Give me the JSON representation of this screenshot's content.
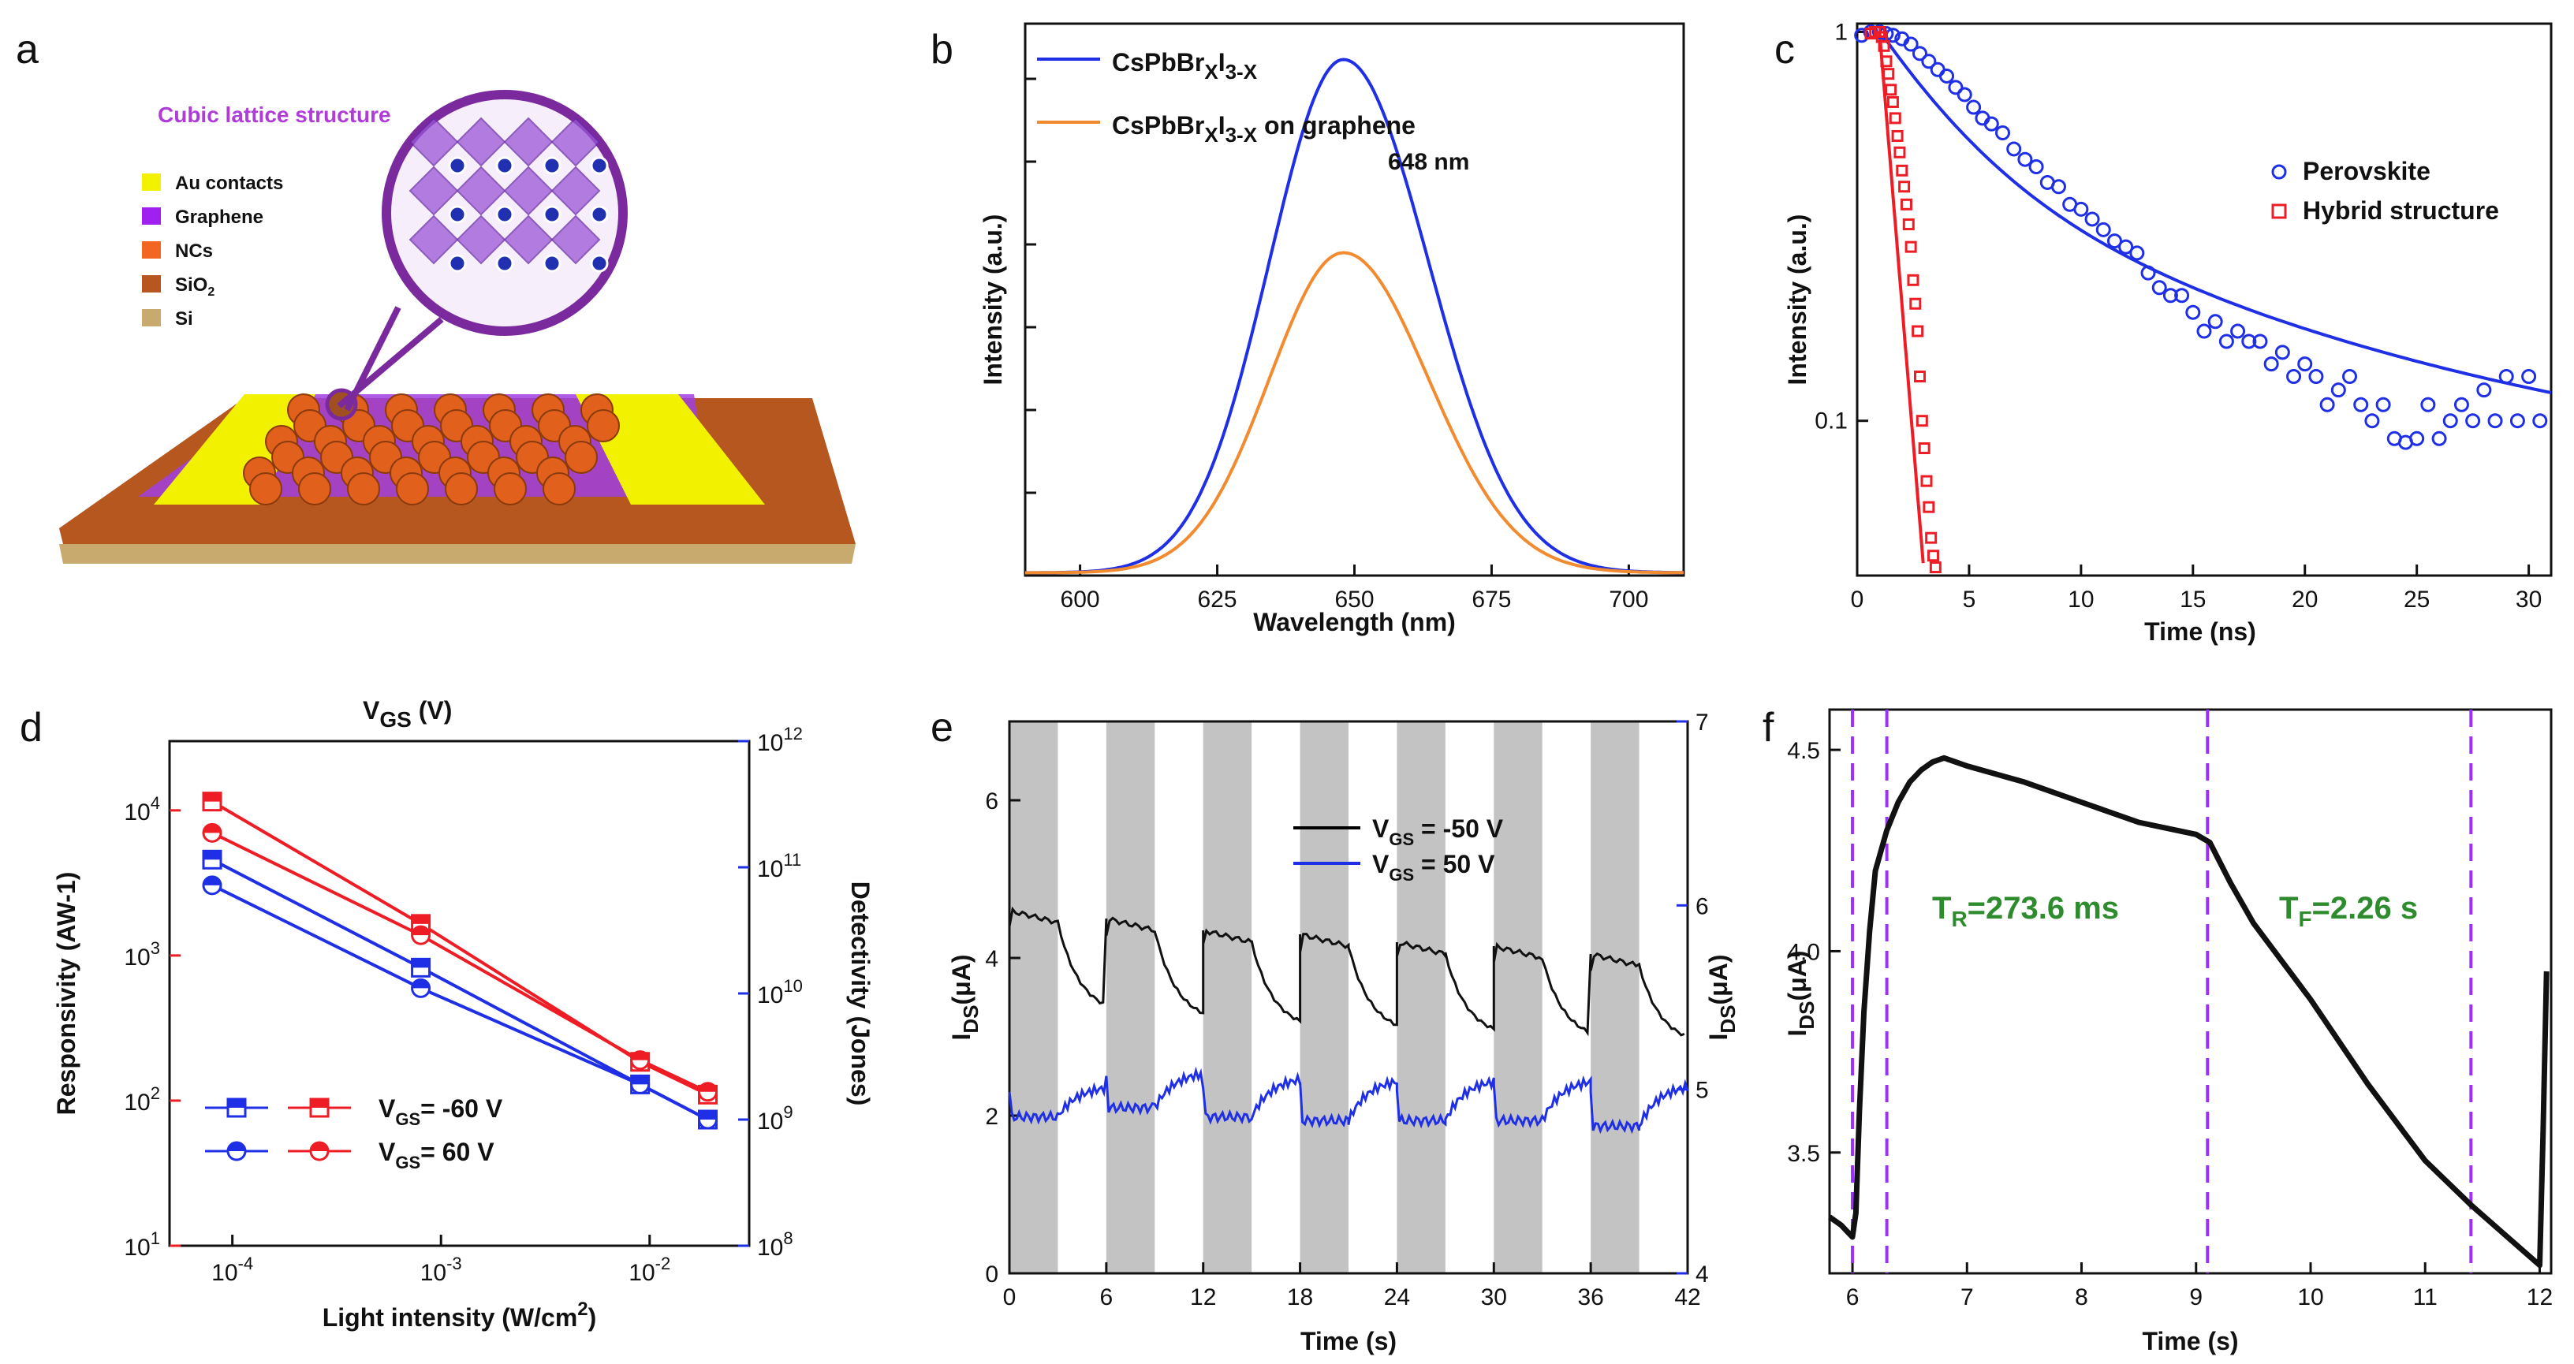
{
  "colors": {
    "blue": "#1f2fe6",
    "red": "#ee1c24",
    "orange": "#f28b30",
    "purple": "#9b30ff",
    "green": "#2e8b2e",
    "gray": "#c3c3c3",
    "magenta": "#b03cd8"
  },
  "panels": {
    "a": {
      "letter": "a",
      "lattice_label": "Cubic lattice structure",
      "legend": [
        {
          "label": "Au contacts",
          "color": "#f2f200"
        },
        {
          "label": "Graphene",
          "color": "#a020f0"
        },
        {
          "label": "NCs",
          "color": "#f26522"
        },
        {
          "label": "SiO",
          "sub": "2",
          "color": "#b5571e"
        },
        {
          "label": "Si",
          "color": "#c8aa6e"
        }
      ]
    },
    "b": {
      "letter": "b",
      "peak_label": "648 nm",
      "legend": [
        {
          "formula": "CsPbBr",
          "x1": "X",
          "mid": "I",
          "x2": "3-X",
          "suffix": ""
        },
        {
          "formula": "CsPbBr",
          "x1": "X",
          "mid": "I",
          "x2": "3-X",
          "suffix": " on graphene"
        }
      ]
    },
    "c": {
      "letter": "c"
    },
    "d": {
      "letter": "d",
      "title_main": "V",
      "title_sub": "GS",
      "title_unit": " (V)"
    },
    "e": {
      "letter": "e"
    },
    "f": {
      "letter": "f",
      "tr_label": "=273.6 ms",
      "tr_main": "T",
      "tr_sub": "R",
      "tf_label": "=2.26 s",
      "tf_main": "T",
      "tf_sub": "F"
    }
  },
  "chart_data": [
    {
      "id": "b",
      "type": "line",
      "title": "",
      "xlabel": "Wavelength (nm)",
      "ylabel": "Intensity (a.u.)",
      "xlim": [
        590,
        710
      ],
      "ylim": [
        0,
        1.0
      ],
      "xticks": [
        600,
        625,
        650,
        675,
        700
      ],
      "series": [
        {
          "name": "CsPbBrXI3-X",
          "color": "blue",
          "peak": 648,
          "amp": 0.93,
          "sigma_left": 13.5,
          "sigma_right": 15.5,
          "base": 0.005
        },
        {
          "name": "CsPbBrXI3-X on graphene",
          "color": "orange",
          "peak": 648,
          "amp": 0.58,
          "sigma_left": 13.5,
          "sigma_right": 15.5,
          "base": 0.005
        }
      ]
    },
    {
      "id": "c",
      "type": "scatter",
      "title": "",
      "xlabel": "Time (ns)",
      "ylabel": "Intensity (a.u.)",
      "xlim": [
        0,
        31
      ],
      "ylim": [
        0.04,
        1.05
      ],
      "yscale": "log",
      "xticks": [
        0,
        5,
        10,
        15,
        20,
        25,
        30
      ],
      "yticks": [
        {
          "v": 1,
          "label": "1"
        },
        {
          "v": 0.1,
          "label": "0.1"
        }
      ],
      "series": [
        {
          "name": "Perovskite",
          "color": "blue",
          "marker": "circle",
          "fit": {
            "t0": 1.2,
            "a1": 0.55,
            "tau1": 3.5,
            "a2": 0.35,
            "tau2": 15,
            "y0": 0.07
          },
          "points": [
            [
              0.2,
              0.98
            ],
            [
              0.6,
              1.0
            ],
            [
              1.0,
              1.0
            ],
            [
              1.3,
              0.99
            ],
            [
              1.6,
              0.98
            ],
            [
              2.0,
              0.96
            ],
            [
              2.4,
              0.93
            ],
            [
              2.8,
              0.88
            ],
            [
              3.2,
              0.84
            ],
            [
              3.6,
              0.8
            ],
            [
              4.0,
              0.77
            ],
            [
              4.4,
              0.72
            ],
            [
              4.8,
              0.69
            ],
            [
              5.2,
              0.64
            ],
            [
              5.6,
              0.6
            ],
            [
              6.0,
              0.58
            ],
            [
              6.5,
              0.55
            ],
            [
              7.0,
              0.5
            ],
            [
              7.5,
              0.47
            ],
            [
              8.0,
              0.45
            ],
            [
              8.5,
              0.41
            ],
            [
              9.0,
              0.4
            ],
            [
              9.5,
              0.36
            ],
            [
              10.0,
              0.35
            ],
            [
              10.5,
              0.33
            ],
            [
              11.0,
              0.31
            ],
            [
              11.5,
              0.29
            ],
            [
              12.0,
              0.28
            ],
            [
              12.5,
              0.27
            ],
            [
              13.0,
              0.24
            ],
            [
              13.5,
              0.22
            ],
            [
              14.0,
              0.21
            ],
            [
              14.5,
              0.21
            ],
            [
              15.0,
              0.19
            ],
            [
              15.5,
              0.17
            ],
            [
              16.0,
              0.18
            ],
            [
              16.5,
              0.16
            ],
            [
              17.0,
              0.17
            ],
            [
              17.5,
              0.16
            ],
            [
              18.0,
              0.16
            ],
            [
              18.5,
              0.14
            ],
            [
              19.0,
              0.15
            ],
            [
              19.5,
              0.13
            ],
            [
              20.0,
              0.14
            ],
            [
              20.5,
              0.13
            ],
            [
              21.0,
              0.11
            ],
            [
              21.5,
              0.12
            ],
            [
              22.0,
              0.13
            ],
            [
              22.5,
              0.11
            ],
            [
              23.0,
              0.1
            ],
            [
              23.5,
              0.11
            ],
            [
              24.0,
              0.09
            ],
            [
              24.5,
              0.088
            ],
            [
              25.0,
              0.09
            ],
            [
              25.5,
              0.11
            ],
            [
              26.0,
              0.09
            ],
            [
              26.5,
              0.1
            ],
            [
              27.0,
              0.11
            ],
            [
              27.5,
              0.1
            ],
            [
              28.0,
              0.12
            ],
            [
              28.5,
              0.1
            ],
            [
              29.0,
              0.13
            ],
            [
              29.5,
              0.1
            ],
            [
              30.0,
              0.13
            ],
            [
              30.5,
              0.1
            ]
          ]
        },
        {
          "name": "Hybrid structure",
          "color": "red",
          "marker": "square",
          "fit": {
            "t0": 1.0,
            "a": 1.0,
            "tau": 0.62
          },
          "points": [
            [
              0.6,
              0.99
            ],
            [
              0.8,
              1.0
            ],
            [
              1.0,
              1.0
            ],
            [
              1.1,
              0.97
            ],
            [
              1.2,
              0.92
            ],
            [
              1.3,
              0.84
            ],
            [
              1.4,
              0.78
            ],
            [
              1.5,
              0.71
            ],
            [
              1.6,
              0.66
            ],
            [
              1.7,
              0.6
            ],
            [
              1.8,
              0.54
            ],
            [
              1.9,
              0.49
            ],
            [
              2.0,
              0.44
            ],
            [
              2.1,
              0.4
            ],
            [
              2.2,
              0.36
            ],
            [
              2.3,
              0.32
            ],
            [
              2.4,
              0.28
            ],
            [
              2.5,
              0.23
            ],
            [
              2.6,
              0.2
            ],
            [
              2.7,
              0.17
            ],
            [
              2.8,
              0.13
            ],
            [
              2.9,
              0.1
            ],
            [
              3.0,
              0.085
            ],
            [
              3.1,
              0.07
            ],
            [
              3.2,
              0.06
            ],
            [
              3.3,
              0.05
            ],
            [
              3.4,
              0.045
            ],
            [
              3.5,
              0.042
            ]
          ]
        }
      ]
    },
    {
      "id": "d",
      "type": "line",
      "title": "VGS (V)",
      "xlabel": "Light intensity (W/cm2)",
      "ylabel": "Responsivity (AW-1)",
      "ylabel2": "Detectivity (Jones)",
      "xscale": "log",
      "yscale": "log",
      "xlim": [
        5e-05,
        0.03
      ],
      "ylim": [
        10,
        30000
      ],
      "ylim2": [
        100000000,
        1000000000000
      ],
      "xticks": [
        {
          "v": 0.0001,
          "m": "10",
          "e": "-4"
        },
        {
          "v": 0.001,
          "m": "10",
          "e": "-3"
        },
        {
          "v": 0.01,
          "m": "10",
          "e": "-2"
        }
      ],
      "yticks": [
        {
          "v": 10,
          "e": "1"
        },
        {
          "v": 100,
          "e": "2"
        },
        {
          "v": 1000,
          "e": "3"
        },
        {
          "v": 10000,
          "e": "4"
        }
      ],
      "y2ticks": [
        {
          "v": 100000000,
          "e": "8"
        },
        {
          "v": 1000000000,
          "e": "9"
        },
        {
          "v": 10000000000,
          "e": "10"
        },
        {
          "v": 100000000000,
          "e": "11"
        },
        {
          "v": 1000000000000,
          "e": "12"
        }
      ],
      "x": [
        8e-05,
        0.0008,
        0.009,
        0.019
      ],
      "series": [
        {
          "name": "Responsivity VGS=-60 V",
          "axis": "left",
          "color": "red",
          "marker": "square",
          "values": [
            11500,
            1650,
            185,
            110
          ]
        },
        {
          "name": "Responsivity VGS=60 V",
          "axis": "left",
          "color": "red",
          "marker": "circle",
          "values": [
            7000,
            1380,
            190,
            115
          ]
        },
        {
          "name": "Detectivity VGS=-60 V",
          "axis": "right",
          "color": "blue",
          "marker": "square",
          "values": [
            115000000000,
            16000000000,
            1900000000,
            1000000000
          ]
        },
        {
          "name": "Detectivity VGS=60 V",
          "axis": "right",
          "color": "blue",
          "marker": "circle",
          "values": [
            72000000000,
            11000000000,
            1900000000,
            1000000000
          ]
        }
      ],
      "legend": [
        {
          "main": "V",
          "sub": "GS",
          "rest": "= -60 V",
          "marker": "square"
        },
        {
          "main": "V",
          "sub": "GS",
          "rest": "= 60 V",
          "marker": "circle"
        }
      ]
    },
    {
      "id": "e",
      "type": "line",
      "title": "",
      "xlabel": "Time (s)",
      "ylabel": "IDS(μA)",
      "ylabel2": "IDS(μA)",
      "xlim": [
        0,
        42
      ],
      "ylim": [
        0,
        7
      ],
      "ylim2": [
        4,
        7
      ],
      "xticks": [
        0,
        6,
        12,
        18,
        24,
        30,
        36,
        42
      ],
      "yticks": [
        0,
        2,
        4,
        6
      ],
      "y2ticks": [
        4,
        5,
        6,
        7
      ],
      "light_on": [
        [
          0,
          3
        ],
        [
          6,
          9
        ],
        [
          12,
          15
        ],
        [
          18,
          21
        ],
        [
          24,
          27
        ],
        [
          30,
          33
        ],
        [
          36,
          39
        ]
      ],
      "series": [
        {
          "name": "VGS = -50 V",
          "color": "black",
          "axis": "left",
          "on_peaks": [
            4.6,
            4.5,
            4.35,
            4.3,
            4.2,
            4.15,
            4.05
          ],
          "off_ends": [
            3.4,
            3.3,
            3.2,
            3.15,
            3.1,
            3.05,
            3.0
          ],
          "end": 2.9
        },
        {
          "name": "VGS = 50 V",
          "color": "blue",
          "axis": "right",
          "on_levels": [
            4.9,
            4.95,
            4.9,
            4.88,
            4.88,
            4.88,
            4.85
          ],
          "rise": [
            0.17,
            0.2,
            0.22,
            0.23,
            0.23,
            0.23,
            0.23
          ],
          "dark": 4.9,
          "end": 5.1
        }
      ],
      "legend": [
        {
          "main": "V",
          "sub": "GS",
          "rest": " = -50 V",
          "color": "black"
        },
        {
          "main": "V",
          "sub": "GS",
          "rest": " = 50 V",
          "color": "blue"
        }
      ]
    },
    {
      "id": "f",
      "type": "line",
      "title": "",
      "xlabel": "Time (s)",
      "ylabel": "IDS(μA)",
      "xlim": [
        5.8,
        12.1
      ],
      "ylim": [
        3.2,
        4.6
      ],
      "xticks": [
        6,
        7,
        8,
        9,
        10,
        11,
        12
      ],
      "yticks": [
        3.5,
        4.0,
        4.5
      ],
      "vlines": [
        6.0,
        6.3,
        9.1,
        11.4
      ],
      "series": [
        {
          "name": "IDS",
          "color": "black",
          "points": [
            [
              5.8,
              3.34
            ],
            [
              5.9,
              3.32
            ],
            [
              6.0,
              3.29
            ],
            [
              6.03,
              3.35
            ],
            [
              6.06,
              3.6
            ],
            [
              6.1,
              3.85
            ],
            [
              6.15,
              4.05
            ],
            [
              6.2,
              4.2
            ],
            [
              6.3,
              4.3
            ],
            [
              6.4,
              4.37
            ],
            [
              6.5,
              4.42
            ],
            [
              6.6,
              4.45
            ],
            [
              6.7,
              4.47
            ],
            [
              6.8,
              4.48
            ],
            [
              6.9,
              4.47
            ],
            [
              7.0,
              4.46
            ],
            [
              7.5,
              4.42
            ],
            [
              8.0,
              4.37
            ],
            [
              8.5,
              4.32
            ],
            [
              9.0,
              4.29
            ],
            [
              9.12,
              4.27
            ],
            [
              9.3,
              4.17
            ],
            [
              9.5,
              4.07
            ],
            [
              10.0,
              3.88
            ],
            [
              10.5,
              3.67
            ],
            [
              11.0,
              3.48
            ],
            [
              11.4,
              3.37
            ],
            [
              11.8,
              3.27
            ],
            [
              12.0,
              3.22
            ],
            [
              12.03,
              3.55
            ],
            [
              12.06,
              3.95
            ]
          ]
        }
      ]
    }
  ]
}
